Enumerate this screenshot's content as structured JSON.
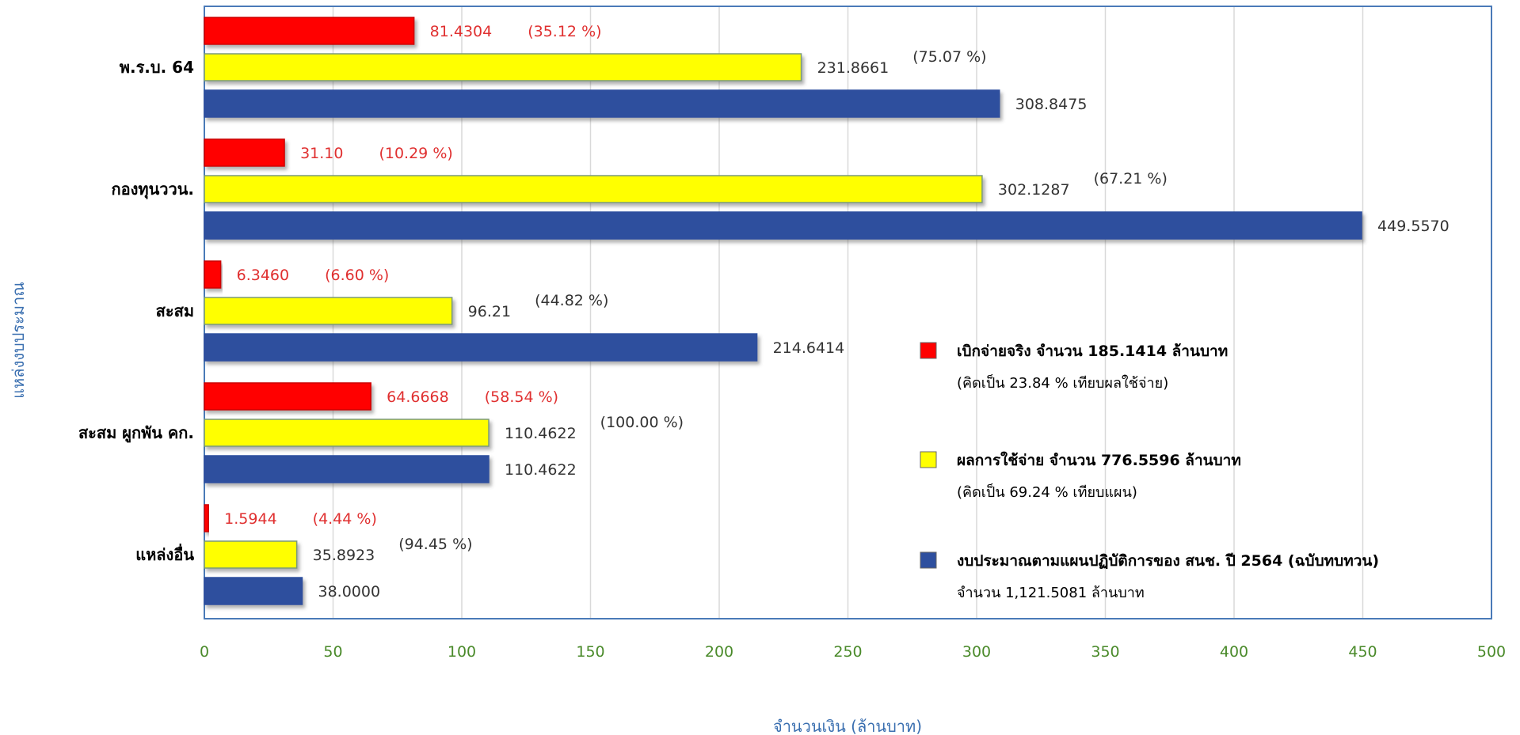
{
  "chart_data": {
    "type": "bar",
    "orientation": "horizontal",
    "categories": [
      "พ.ร.บ. 64",
      "กองทุนววน.",
      "สะสม",
      "สะสม ผูกพัน คก.",
      "แหล่งอื่น"
    ],
    "series": [
      {
        "name": "เบิกจ่ายจริง",
        "color": "#ff0000",
        "values": [
          81.4304,
          31.1,
          6.346,
          64.6668,
          1.5944
        ],
        "labels": [
          "81.4304",
          "31.10",
          "6.3460",
          "64.6668",
          "1.5944"
        ],
        "percents": [
          "(35.12 %)",
          "(10.29 %)",
          "(6.60 %)",
          "(58.54 %)",
          "(4.44 %)"
        ]
      },
      {
        "name": "ผลการใช้จ่าย",
        "color": "#ffff00",
        "values": [
          231.8661,
          302.1287,
          96.21,
          110.4622,
          35.8923
        ],
        "labels": [
          "231.8661",
          "302.1287",
          "96.21",
          "110.4622",
          "35.8923"
        ],
        "percents": [
          "(75.07 %)",
          "(67.21 %)",
          "(44.82 %)",
          "(100.00 %)",
          "(94.45 %)"
        ]
      },
      {
        "name": "งบประมาณตามแผน",
        "color": "#2e4f9e",
        "values": [
          308.8475,
          449.557,
          214.6414,
          110.4622,
          38.0
        ],
        "labels": [
          "308.8475",
          "449.5570",
          "214.6414",
          "110.4622",
          "38.0000"
        ]
      }
    ],
    "xlim": [
      0,
      500
    ],
    "xticks": [
      "0",
      "50",
      "100",
      "150",
      "200",
      "250",
      "300",
      "350",
      "400",
      "450",
      "500"
    ],
    "xlabel": "จำนวนเงิน (ล้านบาท)",
    "ylabel": "แหล่งงบประมาณ",
    "grid": "vertical",
    "legend": [
      {
        "color": "#ff0000",
        "line1": "เบิกจ่ายจริง จำนวน 185.1414 ล้านบาท",
        "line2": "(คิดเป็น 23.84 % เทียบผลใช้จ่าย)"
      },
      {
        "color": "#ffff00",
        "line1": "ผลการใช้จ่าย จำนวน 776.5596 ล้านบาท",
        "line2": "(คิดเป็น 69.24 % เทียบแผน)"
      },
      {
        "color": "#2e4f9e",
        "line1": "งบประมาณตามแผนปฏิบัติการของ สนช. ปี 2564 (ฉบับทบทวน)",
        "line2": "จำนวน 1,121.5081 ล้านบาท"
      }
    ],
    "legend_position": "right"
  }
}
